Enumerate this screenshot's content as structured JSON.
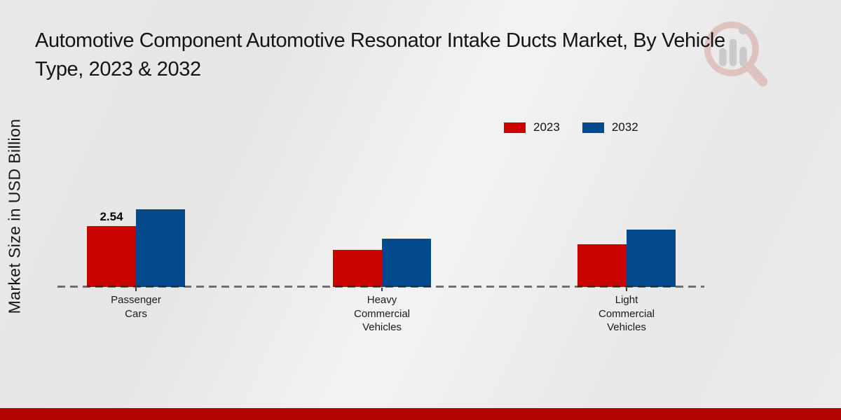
{
  "title": {
    "line1": "Automotive Component Automotive Resonator Intake Ducts Market, By Vehicle",
    "line2": "Type, 2023 & 2032"
  },
  "chart_data": {
    "type": "bar",
    "title": "Automotive Component Automotive Resonator Intake Ducts Market, By Vehicle Type, 2023 & 2032",
    "ylabel": "Market Size in USD Billion",
    "xlabel": "",
    "categories": [
      "Passenger\nCars",
      "Heavy\nCommercial\nVehicles",
      "Light\nCommercial\nVehicles"
    ],
    "series": [
      {
        "name": "2023",
        "color": "#c80300",
        "values": [
          2.54,
          1.55,
          1.78
        ]
      },
      {
        "name": "2032",
        "color": "#02498b",
        "values": [
          3.24,
          2.02,
          2.38
        ]
      }
    ],
    "bar_labels": [
      {
        "series_index": 0,
        "category_index": 0,
        "text": "2.54"
      }
    ],
    "ylim": [
      0,
      3.6
    ],
    "grid": false,
    "baseline_style": "dashed",
    "legend_position": "top-right"
  },
  "colors": {
    "bottom_bar": "#b20400",
    "baseline": "#4a4a4a",
    "background": "#ebebeb"
  },
  "watermark": {
    "name": "magnifier-bar-chart-logo"
  }
}
